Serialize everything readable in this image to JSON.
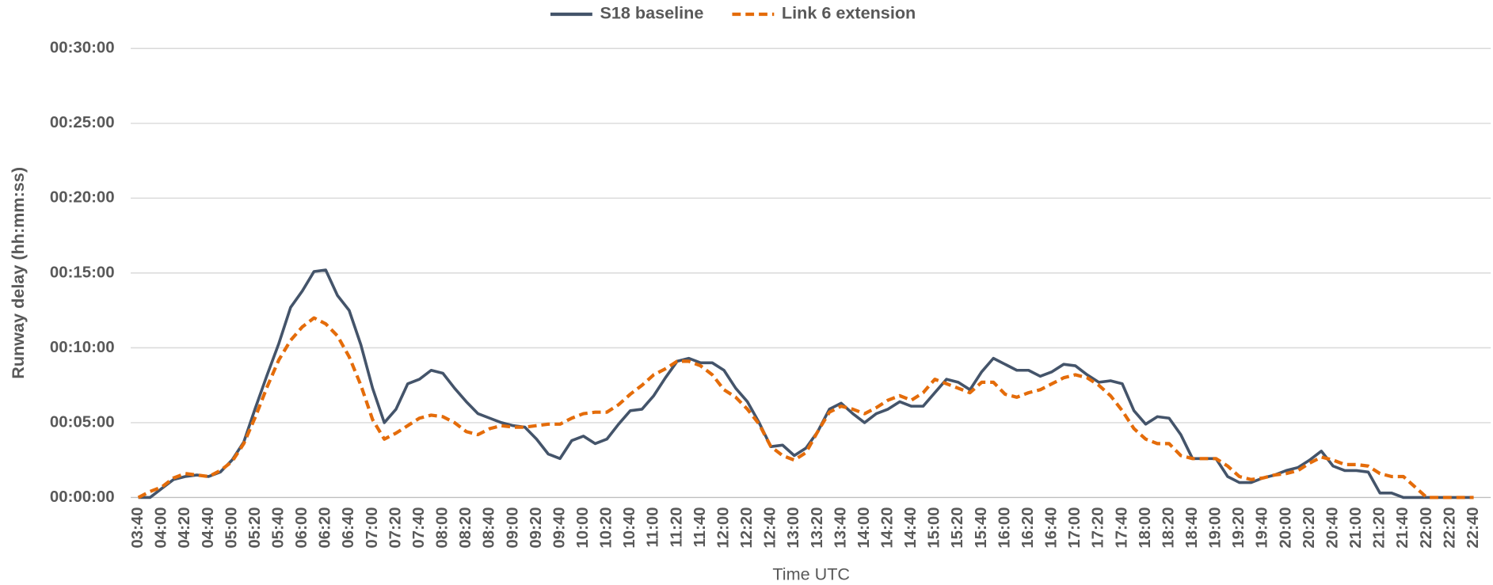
{
  "chart_data": {
    "type": "line",
    "y_label": "Runway delay (hh:mm:ss)",
    "x_label": "Time UTC",
    "categories": [
      "03:40",
      null,
      "04:00",
      null,
      "04:20",
      null,
      "04:40",
      null,
      "05:00",
      null,
      "05:20",
      null,
      "05:40",
      null,
      "06:00",
      null,
      "06:20",
      null,
      "06:40",
      null,
      "07:00",
      null,
      "07:20",
      null,
      "07:40",
      null,
      "08:00",
      null,
      "08:20",
      null,
      "08:40",
      null,
      "09:00",
      null,
      "09:20",
      null,
      "09:40",
      null,
      "10:00",
      null,
      "10:20",
      null,
      "10:40",
      null,
      "11:00",
      null,
      "11:20",
      null,
      "11:40",
      null,
      "12:00",
      null,
      "12:20",
      null,
      "12:40",
      null,
      "13:00",
      null,
      "13:20",
      null,
      "13:40",
      null,
      "14:00",
      null,
      "14:20",
      null,
      "14:40",
      null,
      "15:00",
      null,
      "15:20",
      null,
      "15:40",
      null,
      "16:00",
      null,
      "16:20",
      null,
      "16:40",
      null,
      "17:00",
      null,
      "17:20",
      null,
      "17:40",
      null,
      "18:00",
      null,
      "18:20",
      null,
      "18:40",
      null,
      "19:00",
      null,
      "19:20",
      null,
      "19:40",
      null,
      "20:00",
      null,
      "20:20",
      null,
      "20:40",
      null,
      "21:00",
      null,
      "21:20",
      null,
      "21:40",
      null,
      "22:00",
      null,
      "22:20",
      null,
      "22:40"
    ],
    "series": [
      {
        "name": "S18 baseline",
        "color": "#44546a",
        "dash": false,
        "values": [
          0,
          0,
          0.6,
          1.2,
          1.4,
          1.5,
          1.4,
          1.7,
          2.5,
          3.7,
          6.0,
          8.2,
          10.3,
          12.7,
          13.8,
          15.1,
          15.2,
          13.5,
          12.5,
          10.2,
          7.3,
          5.0,
          5.9,
          7.6,
          7.9,
          8.5,
          8.3,
          7.3,
          6.4,
          5.6,
          5.3,
          5.0,
          4.8,
          4.7,
          3.9,
          2.9,
          2.6,
          3.8,
          4.1,
          3.6,
          3.9,
          4.9,
          5.8,
          5.9,
          6.8,
          8.0,
          9.1,
          9.3,
          9.0,
          9.0,
          8.5,
          7.3,
          6.4,
          5.0,
          3.4,
          3.5,
          2.8,
          3.3,
          4.4,
          5.9,
          6.3,
          5.6,
          5.0,
          5.6,
          5.9,
          6.4,
          6.1,
          6.1,
          7.0,
          7.9,
          7.7,
          7.2,
          8.4,
          9.3,
          8.9,
          8.5,
          8.5,
          8.1,
          8.4,
          8.9,
          8.8,
          8.2,
          7.7,
          7.8,
          7.6,
          5.8,
          4.9,
          5.4,
          5.3,
          4.2,
          2.6,
          2.6,
          2.6,
          1.4,
          1.0,
          1.0,
          1.3,
          1.5,
          1.8,
          2.0,
          2.5,
          3.1,
          2.1,
          1.8,
          1.8,
          1.7,
          0.3,
          0.3,
          0,
          0,
          0,
          0,
          0,
          0,
          0
        ]
      },
      {
        "name": "Link 6 extension",
        "color": "#e46c0a",
        "dash": true,
        "values": [
          0,
          0.4,
          0.7,
          1.3,
          1.6,
          1.5,
          1.4,
          1.8,
          2.4,
          3.6,
          5.4,
          7.4,
          9.2,
          10.5,
          11.4,
          12.0,
          11.6,
          10.8,
          9.4,
          7.5,
          5.2,
          3.9,
          4.3,
          4.8,
          5.3,
          5.5,
          5.4,
          5.0,
          4.4,
          4.2,
          4.6,
          4.8,
          4.7,
          4.7,
          4.8,
          4.9,
          4.9,
          5.3,
          5.6,
          5.7,
          5.7,
          6.2,
          6.9,
          7.5,
          8.2,
          8.6,
          9.1,
          9.1,
          8.8,
          8.2,
          7.2,
          6.7,
          5.9,
          4.9,
          3.4,
          2.8,
          2.5,
          3.0,
          4.4,
          5.7,
          6.1,
          5.9,
          5.6,
          6.0,
          6.5,
          6.8,
          6.5,
          7.0,
          7.9,
          7.6,
          7.3,
          7.0,
          7.7,
          7.7,
          6.9,
          6.7,
          7.0,
          7.2,
          7.6,
          8.0,
          8.2,
          8.0,
          7.5,
          6.8,
          5.8,
          4.6,
          3.9,
          3.6,
          3.6,
          2.8,
          2.6,
          2.6,
          2.6,
          2.1,
          1.4,
          1.2,
          1.3,
          1.5,
          1.6,
          1.8,
          2.3,
          2.7,
          2.5,
          2.2,
          2.2,
          2.1,
          1.6,
          1.4,
          1.4,
          0.7,
          0,
          0,
          0,
          0,
          0
        ]
      }
    ],
    "ylim": [
      0,
      30
    ],
    "yticks": [
      {
        "value": 0,
        "label": "00:00:00"
      },
      {
        "value": 5,
        "label": "00:05:00"
      },
      {
        "value": 10,
        "label": "00:10:00"
      },
      {
        "value": 15,
        "label": "00:15:00"
      },
      {
        "value": 20,
        "label": "00:20:00"
      },
      {
        "value": 25,
        "label": "00:25:00"
      },
      {
        "value": 30,
        "label": "00:30:00"
      }
    ],
    "grid": true,
    "legend": "top"
  }
}
